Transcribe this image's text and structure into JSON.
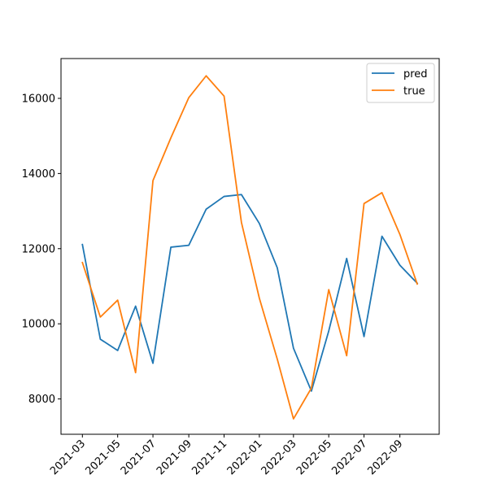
{
  "chart_data": {
    "type": "line",
    "x": [
      "2021-03",
      "2021-04",
      "2021-05",
      "2021-06",
      "2021-07",
      "2021-08",
      "2021-09",
      "2021-10",
      "2021-11",
      "2021-12",
      "2022-01",
      "2022-02",
      "2022-03",
      "2022-04",
      "2022-05",
      "2022-06",
      "2022-07",
      "2022-08",
      "2022-09",
      "2022-10"
    ],
    "xticks": [
      "2021-03",
      "2021-05",
      "2021-07",
      "2021-09",
      "2021-11",
      "2022-01",
      "2022-03",
      "2022-05",
      "2022-07",
      "2022-09"
    ],
    "yticks": [
      8000,
      10000,
      12000,
      14000,
      16000
    ],
    "xlim": [
      "2021-01-23",
      "2022-11-08"
    ],
    "ylim": [
      7060,
      17060
    ],
    "legend_position": "top-right",
    "title": "",
    "xlabel": "",
    "ylabel": "",
    "grid": false,
    "series": [
      {
        "name": "pred",
        "color": "#1f77b4",
        "values": [
          12110,
          9590,
          9290,
          10470,
          8950,
          12040,
          12090,
          13050,
          13390,
          13440,
          12670,
          11490,
          9350,
          8210,
          9810,
          11740,
          9660,
          12330,
          11560,
          11080
        ]
      },
      {
        "name": "true",
        "color": "#ff7f0e",
        "values": [
          11630,
          10180,
          10630,
          8700,
          13810,
          14950,
          16020,
          16600,
          16060,
          12700,
          10680,
          9060,
          7470,
          8290,
          10910,
          9150,
          13200,
          13490,
          12380,
          11060
        ]
      }
    ]
  }
}
